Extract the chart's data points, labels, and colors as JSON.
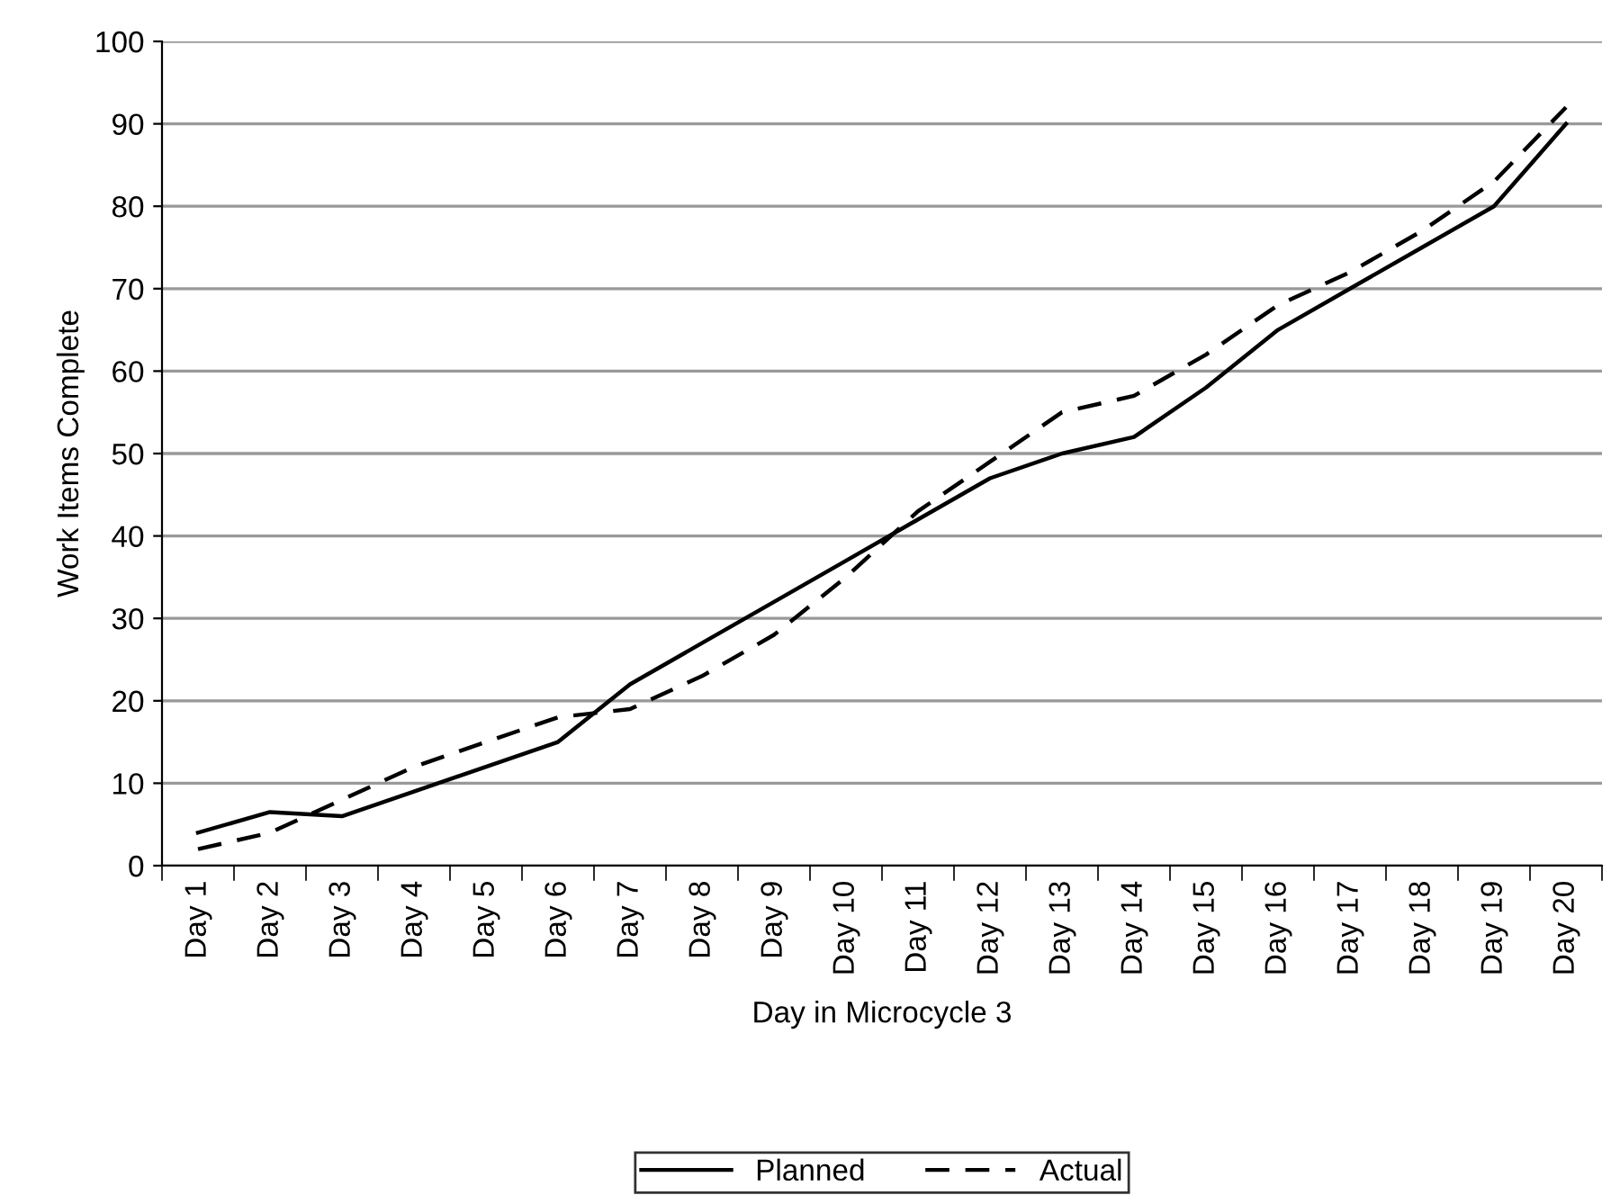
{
  "chart_data": {
    "type": "line",
    "xlabel": "Day in Microcycle 3",
    "ylabel": "Work Items Complete",
    "categories": [
      "Day 1",
      "Day 2",
      "Day 3",
      "Day 4",
      "Day 5",
      "Day 6",
      "Day 7",
      "Day 8",
      "Day 9",
      "Day 10",
      "Day 11",
      "Day 12",
      "Day 13",
      "Day 14",
      "Day 15",
      "Day 16",
      "Day 17",
      "Day 18",
      "Day 19",
      "Day 20"
    ],
    "series": [
      {
        "name": "Planned",
        "color": "#000000",
        "line_style": "solid",
        "values": [
          4,
          6.5,
          6,
          9,
          12,
          15,
          22,
          27,
          32,
          37,
          42,
          47,
          50,
          52,
          58,
          65,
          70,
          75,
          80,
          90
        ]
      },
      {
        "name": "Actual",
        "color": "#000000",
        "line_style": "dashed",
        "values": [
          2,
          4,
          8,
          12,
          15,
          18,
          19,
          23,
          28,
          35,
          43,
          49,
          55,
          57,
          62,
          68,
          72,
          77,
          83,
          92
        ]
      }
    ],
    "ylim": [
      0,
      100
    ],
    "yticks": [
      0,
      10,
      20,
      30,
      40,
      50,
      60,
      70,
      80,
      90,
      100
    ],
    "grid": "y",
    "legend": "bottom",
    "marker": "none"
  }
}
